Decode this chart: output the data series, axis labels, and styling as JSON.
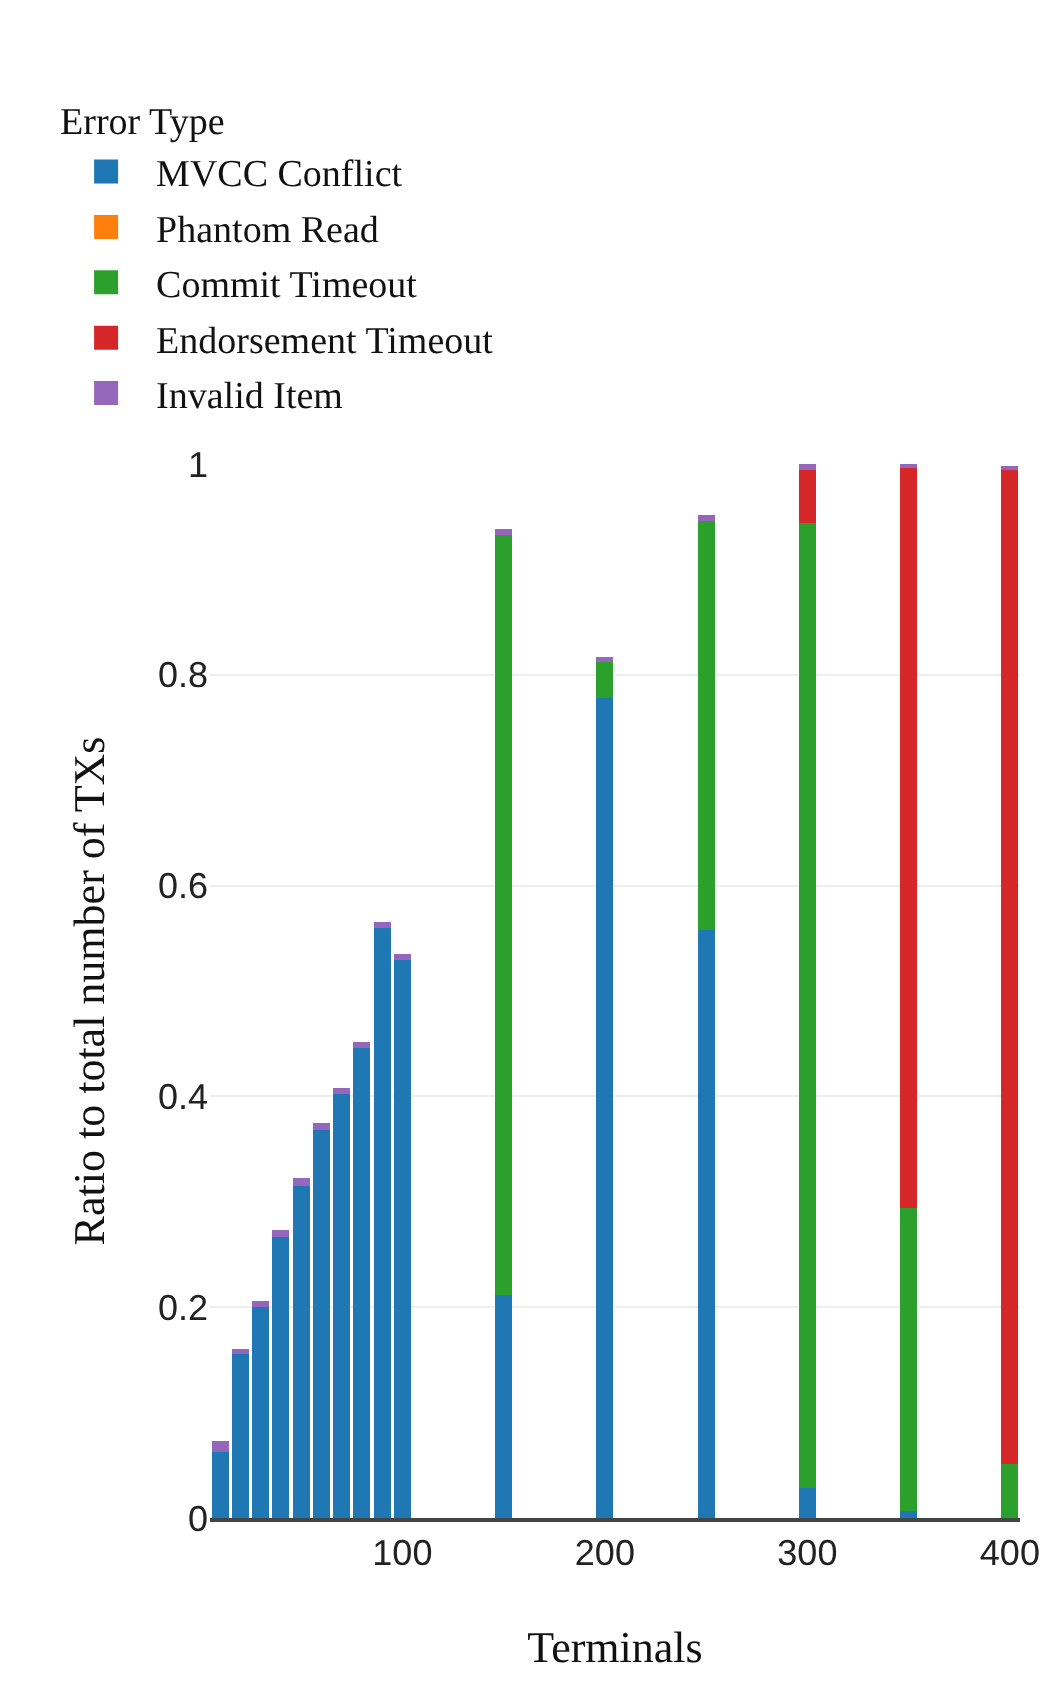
{
  "chart_data": {
    "type": "bar",
    "stacked": true,
    "xlabel": "Terminals",
    "ylabel": "Ratio to total number of TXs",
    "legend_title": "Error Type",
    "legend": "top left",
    "grid": "y",
    "x": [
      10,
      20,
      30,
      40,
      50,
      60,
      70,
      80,
      90,
      100,
      150,
      200,
      250,
      300,
      350,
      400
    ],
    "xlim": [
      5,
      405
    ],
    "xticks": [
      100,
      200,
      300,
      400
    ],
    "ylim": [
      0,
      1
    ],
    "yticks": [
      0,
      0.2,
      0.4,
      0.6,
      0.8,
      1
    ],
    "series": [
      {
        "name": "MVCC Conflict",
        "color": "#1f77b4",
        "values": [
          0.063,
          0.156,
          0.2,
          0.267,
          0.315,
          0.368,
          0.402,
          0.446,
          0.56,
          0.529,
          0.212,
          0.778,
          0.558,
          0.028,
          0.007,
          0
        ]
      },
      {
        "name": "Phantom Read",
        "color": "#ff7f0e",
        "values": [
          0,
          0,
          0,
          0,
          0,
          0,
          0,
          0,
          0,
          0,
          0,
          0,
          0,
          0,
          0,
          0
        ]
      },
      {
        "name": "Commit Timeout",
        "color": "#2ca02c",
        "values": [
          0,
          0,
          0,
          0,
          0,
          0,
          0,
          0,
          0,
          0,
          0.721,
          0.034,
          0.388,
          0.916,
          0.287,
          0.051
        ]
      },
      {
        "name": "Endorsement Timeout",
        "color": "#d62728",
        "values": [
          0,
          0,
          0,
          0,
          0,
          0,
          0,
          0,
          0,
          0,
          0,
          0,
          0,
          0.05,
          0.703,
          0.945
        ]
      },
      {
        "name": "Invalid Item",
        "color": "#9467bd",
        "values": [
          0.01,
          0.004,
          0.006,
          0.006,
          0.008,
          0.007,
          0.006,
          0.006,
          0.005,
          0.006,
          0.005,
          0.005,
          0.006,
          0.006,
          0.002,
          0.002
        ]
      }
    ]
  }
}
